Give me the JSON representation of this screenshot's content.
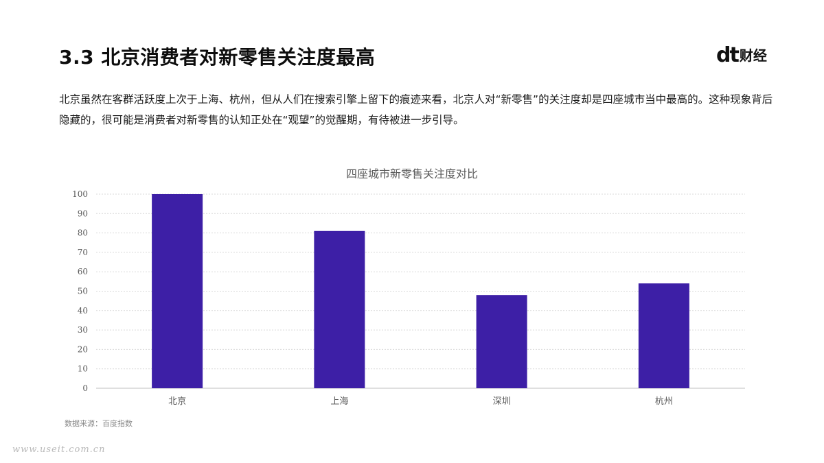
{
  "header": {
    "title": "3.3 北京消费者对新零售关注度最高",
    "logo_mark": "dt",
    "logo_word": "财经"
  },
  "intro_text": "北京虽然在客群活跃度上次于上海、杭州，但从人们在搜索引擎上留下的痕迹来看，北京人对“新零售”的关注度却是四座城市当中最高的。这种现象背后隐藏的，很可能是消费者对新零售的认知正处在“观望”的觉醒期，有待被进一步引导。",
  "source_note": "数据来源：百度指数",
  "watermark": "www.useit.com.cn",
  "chart_data": {
    "type": "bar",
    "title": "四座城市新零售关注度对比",
    "categories": [
      "北京",
      "上海",
      "深圳",
      "杭州"
    ],
    "values": [
      100,
      81,
      48,
      54
    ],
    "ylim": [
      0,
      100
    ],
    "yticks": [
      0,
      10,
      20,
      30,
      40,
      50,
      60,
      70,
      80,
      90,
      100
    ],
    "xlabel": "",
    "ylabel": "",
    "grid": true,
    "bar_color": "#3d1fa6",
    "grid_color": "#d9d9d9",
    "axis_color": "#bfbfbf",
    "tick_color": "#595959"
  }
}
